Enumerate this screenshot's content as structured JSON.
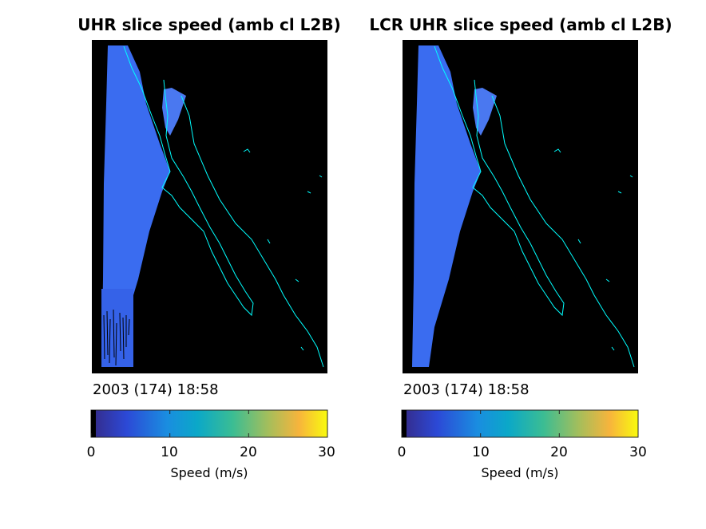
{
  "panels": [
    {
      "title": "UHR slice speed (amb cl L2B)",
      "timestamp": "2003 (174) 18:58",
      "colorbar": {
        "ticks": [
          "0",
          "10",
          "20",
          "30"
        ],
        "label": "Speed (m/s)"
      }
    },
    {
      "title": "LCR UHR slice speed (amb cl L2B)",
      "timestamp": "2003 (174) 18:58",
      "colorbar": {
        "ticks": [
          "0",
          "10",
          "20",
          "30"
        ],
        "label": "Speed (m/s)"
      }
    }
  ],
  "chart_data": [
    {
      "type": "heatmap",
      "title": "UHR slice speed (amb cl L2B)",
      "colorbar_label": "Speed (m/s)",
      "clim": [
        0,
        30
      ],
      "colorbar_ticks": [
        0,
        10,
        20,
        30
      ],
      "colormap": "parula",
      "typical_speed_ms": 6,
      "background_color": "#000000",
      "coastline_color": "#00ffff",
      "note_visible": "speckled low-speed region at southern end of swath"
    },
    {
      "type": "heatmap",
      "title": "LCR UHR slice speed (amb cl L2B)",
      "colorbar_label": "Speed (m/s)",
      "clim": [
        0,
        30
      ],
      "colorbar_ticks": [
        0,
        10,
        20,
        30
      ],
      "colormap": "parula",
      "typical_speed_ms": 6,
      "background_color": "#000000",
      "coastline_color": "#00ffff"
    }
  ]
}
